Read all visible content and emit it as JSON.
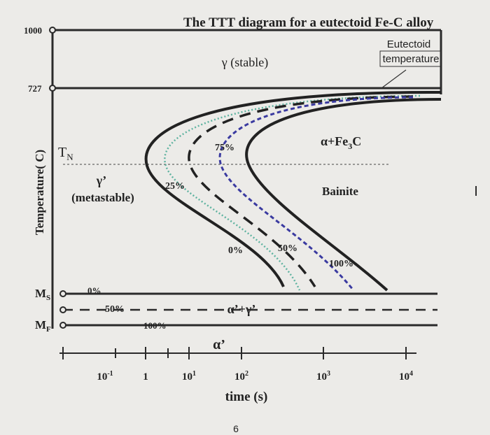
{
  "title": "The TTT diagram for a eutectoid Fe-C alloy",
  "y_axis": {
    "label": "Temperature( C)",
    "top": "1000",
    "eutectoid": "727"
  },
  "regions": {
    "stable": "γ (stable)",
    "metastable_symbol": "γ’",
    "metastable": "(metastable)",
    "pearlite": {
      "base": "α+Fe",
      "sub": "3",
      "tail": "C"
    },
    "bainite": "Bainite",
    "martensite_mix": "α’+γ’",
    "martensite": "α’"
  },
  "eutectoid_note": [
    "Eutectoid",
    "temperature"
  ],
  "tn": {
    "base": "T",
    "sub": "N"
  },
  "curve_labels": [
    "25%",
    "75%",
    "0%",
    "50%",
    "100%"
  ],
  "ms": {
    "base": "M",
    "sub": "S",
    "pct": "0%"
  },
  "m50": "50%",
  "mf": {
    "base": "M",
    "sub": "F",
    "pct": "100%"
  },
  "x_axis": {
    "label": "time (s)",
    "ticks": [
      {
        "base": "10",
        "exp": "-1"
      },
      {
        "base": "1",
        "exp": ""
      },
      {
        "base": "10",
        "exp": "1"
      },
      {
        "base": "10",
        "exp": "2"
      },
      {
        "base": "10",
        "exp": "3"
      },
      {
        "base": "10",
        "exp": "4"
      }
    ]
  },
  "page_number": "6",
  "cursor": "I"
}
